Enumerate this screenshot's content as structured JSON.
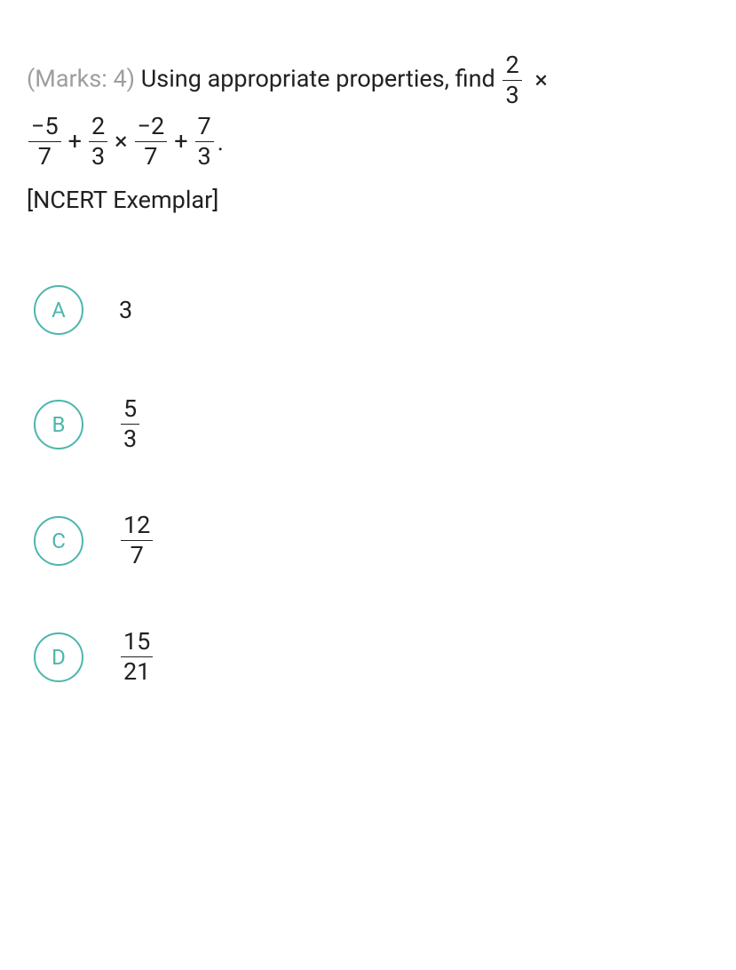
{
  "question": {
    "marks_label": "(Marks: 4)",
    "prompt_text": "Using appropriate properties, find",
    "frac1": {
      "num": "2",
      "den": "3"
    },
    "op1": "×",
    "frac2": {
      "num": "−5",
      "den": "7"
    },
    "op2": "+",
    "frac3": {
      "num": "2",
      "den": "3"
    },
    "op3": "×",
    "frac4": {
      "num": "−2",
      "den": "7"
    },
    "op4": "+",
    "frac5": {
      "num": "7",
      "den": "3"
    },
    "period": ".",
    "source": "[NCERT Exemplar]"
  },
  "options": {
    "a": {
      "letter": "A",
      "value": "3",
      "is_frac": false
    },
    "b": {
      "letter": "B",
      "num": "5",
      "den": "3",
      "is_frac": true
    },
    "c": {
      "letter": "C",
      "num": "12",
      "den": "7",
      "is_frac": true
    },
    "d": {
      "letter": "D",
      "num": "15",
      "den": "21",
      "is_frac": true
    }
  },
  "colors": {
    "text": "#212121",
    "muted": "#9e9e9e",
    "accent": "#4db6ac",
    "background": "#ffffff"
  }
}
